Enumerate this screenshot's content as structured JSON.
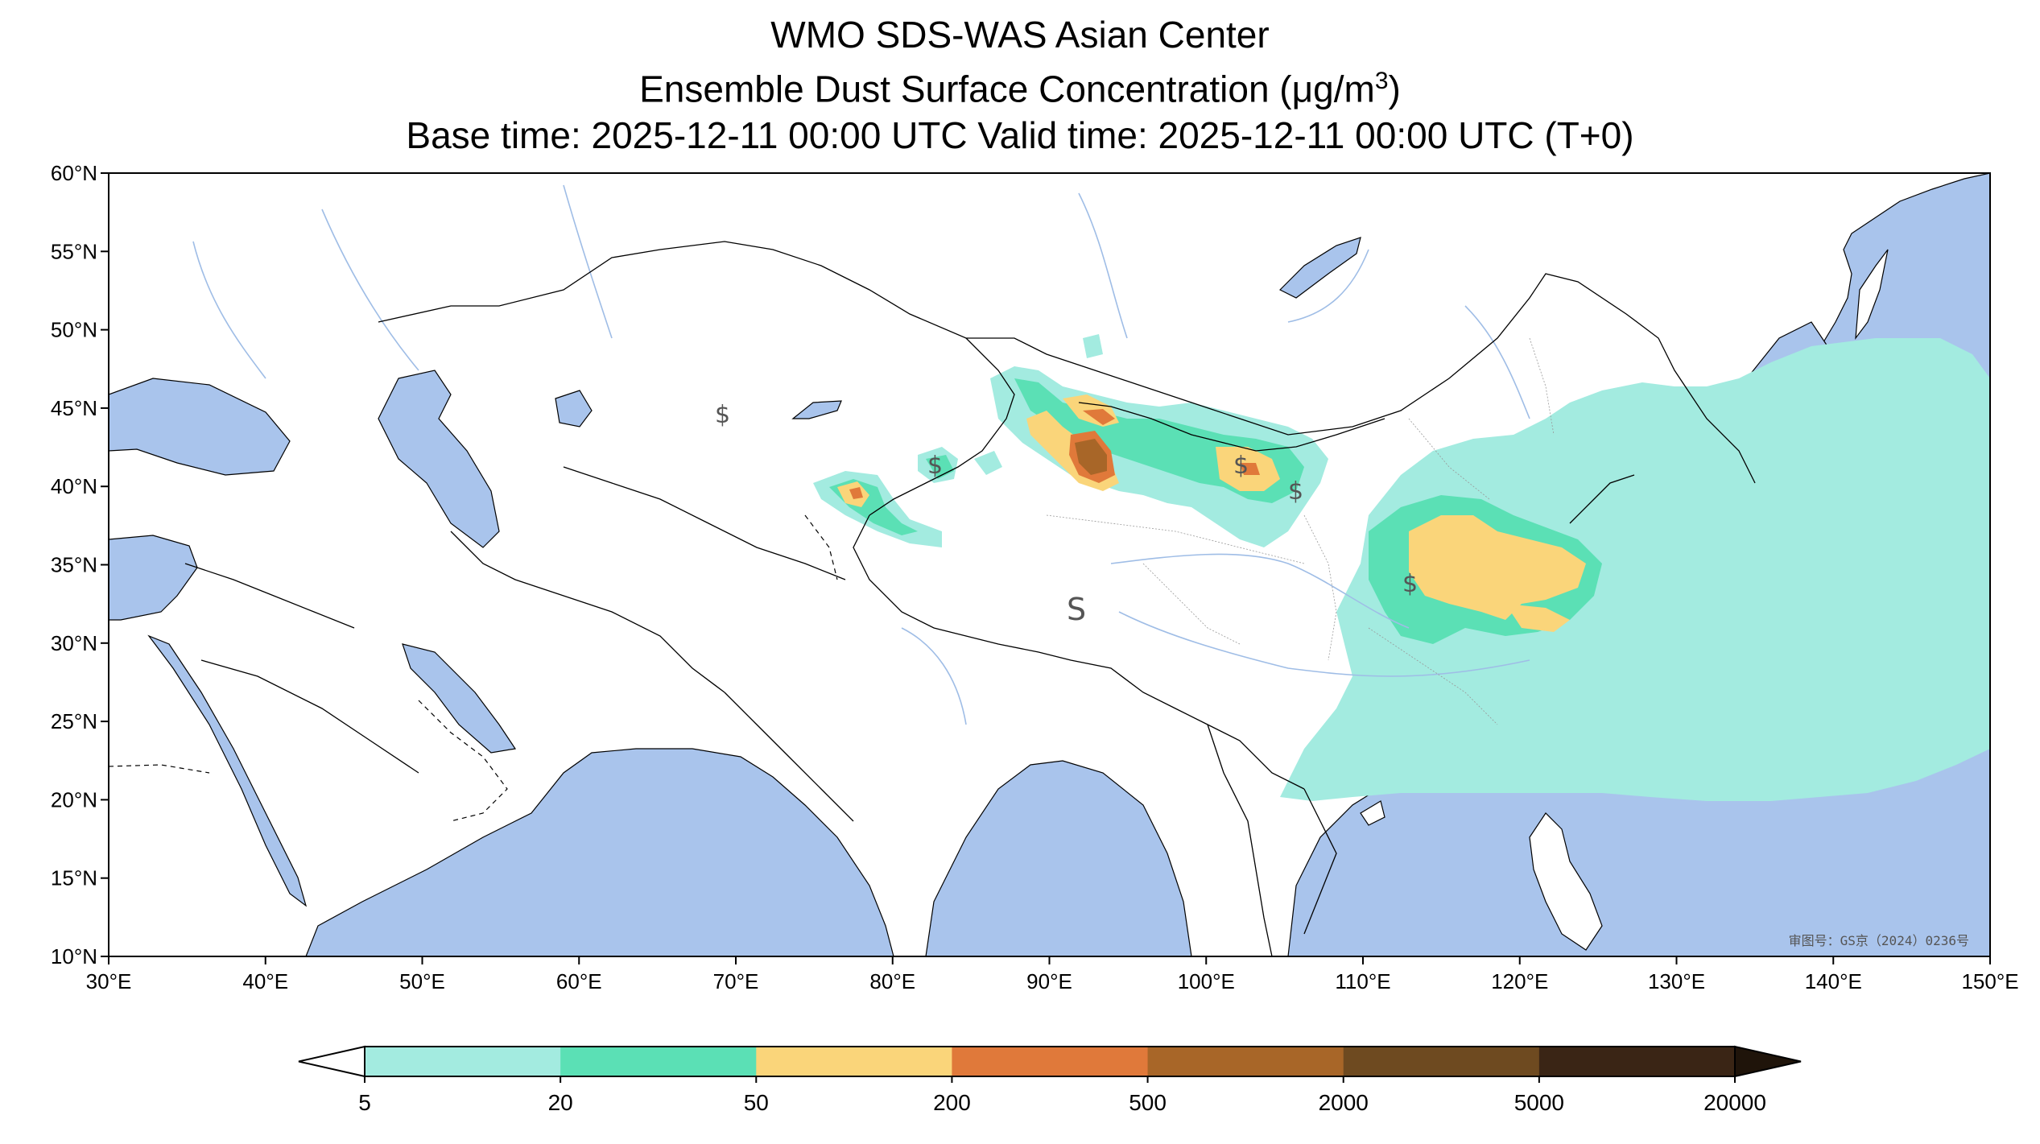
{
  "title": {
    "line1": "WMO SDS-WAS Asian Center",
    "line2_pre": "Ensemble Dust Surface Concentration (",
    "line2_unit_mu": "μ",
    "line2_unit_rest": "g/m",
    "line2_unit_sup": "3",
    "line2_post": ")",
    "line3": "Base time: 2025-12-11 00:00 UTC Valid time: 2025-12-11 00:00 UTC (T+0)"
  },
  "map": {
    "lon_range": [
      30,
      150
    ],
    "lat_range": [
      10,
      60
    ],
    "lon_ticks": [
      "30°E",
      "40°E",
      "50°E",
      "60°E",
      "70°E",
      "80°E",
      "90°E",
      "100°E",
      "110°E",
      "120°E",
      "130°E",
      "140°E",
      "150°E"
    ],
    "lat_ticks": [
      "10°N",
      "15°N",
      "20°N",
      "25°N",
      "30°N",
      "35°N",
      "40°N",
      "45°N",
      "50°N",
      "55°N",
      "60°N"
    ],
    "approval_stamp": "审图号：GS京（2024）0236号",
    "colors": {
      "sea": "#a9c4ec",
      "land": "#ffffff",
      "border": "#000000",
      "river": "#9fbde6"
    }
  },
  "colorbar": {
    "levels": [
      "5",
      "20",
      "50",
      "200",
      "500",
      "2000",
      "5000",
      "20000"
    ],
    "colors": [
      "#a3ebe0",
      "#5be0b5",
      "#fad57a",
      "#e0793a",
      "#a86628",
      "#6e4a20",
      "#3a2515"
    ],
    "under_color": "#ffffff",
    "over_color": "#1f140a"
  }
}
